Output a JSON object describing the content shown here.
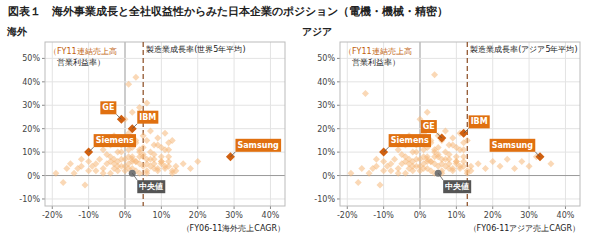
{
  "chart_data": [
    {
      "type": "scatter",
      "title": "図表１　海外事業成長と全社収益性からみた日本企業のポジション（電機・機械・精密）",
      "subtitle": "海外",
      "x_label": "（FY06-11海外売上CAGR）",
      "y_label": [
        "（FY11連結売上高",
        "　営業利益率）"
      ],
      "xlim": [
        -22,
        44
      ],
      "ylim": [
        -13,
        57
      ],
      "xticks": [
        {
          "value": -20,
          "label": "-20%"
        },
        {
          "value": -10,
          "label": "-10%"
        },
        {
          "value": 0,
          "label": "0%"
        },
        {
          "value": 10,
          "label": "10%"
        },
        {
          "value": 20,
          "label": "20%"
        },
        {
          "value": 30,
          "label": "30%"
        },
        {
          "value": 40,
          "label": "40%"
        }
      ],
      "yticks": [
        {
          "value": -10,
          "label": "-10%"
        },
        {
          "value": 0,
          "label": "0%"
        },
        {
          "value": 10,
          "label": "10%"
        },
        {
          "value": 20,
          "label": "20%"
        },
        {
          "value": 30,
          "label": "30%"
        },
        {
          "value": 40,
          "label": "40%"
        },
        {
          "value": 50,
          "label": "50%"
        }
      ],
      "grid": true,
      "reference_line": {
        "x": 5,
        "text": "製造業成長率(世界5年平均)"
      },
      "series": [
        {
          "color": "#f5b87a",
          "marker": "diamond",
          "x": [
            -19,
            -17,
            -15,
            -13,
            -12,
            -11,
            -10,
            -9,
            -8,
            -7,
            -6,
            -5,
            -4,
            -3,
            -2,
            -1,
            0,
            1,
            2,
            3,
            4,
            5,
            6,
            7,
            8,
            9,
            10,
            11,
            12,
            13,
            -4,
            -3,
            -2,
            -1,
            0,
            1,
            2,
            3,
            4,
            5,
            6,
            7,
            8,
            9,
            10,
            11,
            12,
            13,
            14,
            -6,
            -4,
            -2,
            0,
            2,
            4,
            6,
            8,
            10,
            12,
            -3,
            -1,
            1,
            3,
            5,
            7,
            9,
            11,
            0,
            2,
            4,
            6,
            1,
            3,
            -16,
            -14,
            -12,
            -10,
            -8,
            -6,
            -4,
            -2,
            0,
            2,
            4,
            6,
            8,
            10,
            12,
            14,
            16,
            18,
            20,
            -1,
            1,
            3,
            5,
            7,
            9,
            11,
            13,
            2,
            4,
            6,
            8,
            10,
            12,
            -5,
            -3,
            -1,
            1,
            3,
            5
          ],
          "values": [
            1,
            -3,
            5,
            3,
            7,
            -4,
            6,
            4,
            2,
            7,
            1,
            5,
            8,
            3,
            6,
            4,
            7,
            5,
            3,
            6,
            8,
            4,
            2,
            7,
            5,
            3,
            6,
            4,
            8,
            2,
            1,
            5,
            2,
            7,
            4,
            3,
            6,
            2,
            5,
            8,
            1,
            4,
            7,
            2,
            5,
            3,
            6,
            1,
            4,
            11,
            13,
            10,
            14,
            12,
            11,
            15,
            13,
            12,
            14,
            17,
            16,
            18,
            15,
            17,
            19,
            16,
            18,
            24,
            27,
            29,
            31,
            39,
            42,
            3,
            1,
            4,
            2,
            5,
            3,
            6,
            4,
            2,
            7,
            1,
            5,
            3,
            6,
            4,
            2,
            5,
            3,
            6,
            13,
            11,
            14,
            12,
            10,
            13,
            11,
            15,
            8,
            10,
            7,
            9,
            8,
            11,
            9,
            7,
            10,
            8,
            6,
            9
          ]
        }
      ],
      "annotations": [
        {
          "text": "GE",
          "x": -1,
          "y": 24
        },
        {
          "text": "IBM",
          "x": 2,
          "y": 20
        },
        {
          "text": "Siemens",
          "x": -10,
          "y": 10
        },
        {
          "text": "Samsung",
          "x": 29,
          "y": 8
        }
      ],
      "median": {
        "text": "中央値",
        "x": 2,
        "y": 1
      }
    },
    {
      "type": "scatter",
      "subtitle": "アジア",
      "x_label": "（FY06-11アジア売上CAGR）",
      "y_label": [
        "（FY11連結売上高",
        "　営業利益率）"
      ],
      "xlim": [
        -22,
        44
      ],
      "ylim": [
        -13,
        57
      ],
      "xticks": [
        {
          "value": -20,
          "label": "-20%"
        },
        {
          "value": -10,
          "label": "-10%"
        },
        {
          "value": 0,
          "label": "0%"
        },
        {
          "value": 10,
          "label": "10%"
        },
        {
          "value": 20,
          "label": "20%"
        },
        {
          "value": 30,
          "label": "30%"
        },
        {
          "value": 40,
          "label": "40%"
        }
      ],
      "yticks": [
        {
          "value": -10,
          "label": "-10%"
        },
        {
          "value": 0,
          "label": "0%"
        },
        {
          "value": 10,
          "label": "10%"
        },
        {
          "value": 20,
          "label": "20%"
        },
        {
          "value": 30,
          "label": "30%"
        },
        {
          "value": 40,
          "label": "40%"
        },
        {
          "value": 50,
          "label": "50%"
        }
      ],
      "grid": true,
      "reference_line": {
        "x": 13,
        "text": "製造業成長率(アジア5年平均)"
      },
      "series": [
        {
          "color": "#f5b87a",
          "marker": "diamond",
          "x": [
            -19,
            -17,
            -15,
            -13,
            -12,
            -11,
            -10,
            -9,
            -8,
            -7,
            -6,
            -5,
            -4,
            -3,
            -2,
            -1,
            0,
            1,
            2,
            3,
            4,
            5,
            6,
            7,
            8,
            9,
            10,
            11,
            12,
            13,
            -4,
            -3,
            -2,
            -1,
            0,
            1,
            2,
            3,
            4,
            5,
            6,
            7,
            8,
            9,
            10,
            11,
            12,
            13,
            14,
            -6,
            -4,
            -2,
            0,
            2,
            4,
            6,
            8,
            10,
            12,
            -3,
            -1,
            1,
            3,
            5,
            7,
            9,
            11,
            0,
            2,
            4,
            -16,
            -14,
            -12,
            -10,
            -8,
            -6,
            -4,
            -2,
            0,
            2,
            4,
            6,
            8,
            10,
            12,
            14,
            16,
            18,
            20,
            22,
            24,
            26,
            28,
            30,
            32,
            36,
            -1,
            1,
            3,
            5,
            7,
            9,
            11,
            13,
            2,
            4,
            6,
            8,
            10,
            12,
            -5,
            -3,
            -1,
            1,
            3,
            5
          ],
          "values": [
            1,
            -3,
            35,
            3,
            7,
            -4,
            6,
            4,
            2,
            7,
            1,
            5,
            8,
            3,
            6,
            4,
            7,
            5,
            3,
            6,
            8,
            4,
            2,
            7,
            5,
            3,
            6,
            4,
            8,
            2,
            1,
            5,
            2,
            7,
            4,
            3,
            6,
            2,
            5,
            8,
            1,
            4,
            7,
            2,
            5,
            3,
            6,
            1,
            4,
            11,
            13,
            10,
            14,
            12,
            11,
            15,
            13,
            12,
            14,
            17,
            16,
            18,
            15,
            17,
            19,
            16,
            18,
            24,
            27,
            43,
            3,
            1,
            4,
            2,
            5,
            3,
            6,
            4,
            2,
            7,
            1,
            5,
            3,
            6,
            4,
            2,
            5,
            3,
            6,
            4,
            7,
            3,
            6,
            4,
            8,
            5,
            13,
            11,
            14,
            12,
            10,
            13,
            11,
            15,
            8,
            10,
            7,
            9,
            8,
            11,
            9,
            7,
            10,
            8,
            6,
            9
          ]
        }
      ],
      "annotations": [
        {
          "text": "GE",
          "x": 6,
          "y": 16
        },
        {
          "text": "IBM",
          "x": 12,
          "y": 18
        },
        {
          "text": "Siemens",
          "x": -10,
          "y": 10
        },
        {
          "text": "Samsung",
          "x": 33,
          "y": 8
        }
      ],
      "median": {
        "text": "中央値",
        "x": 5,
        "y": 1
      }
    }
  ]
}
